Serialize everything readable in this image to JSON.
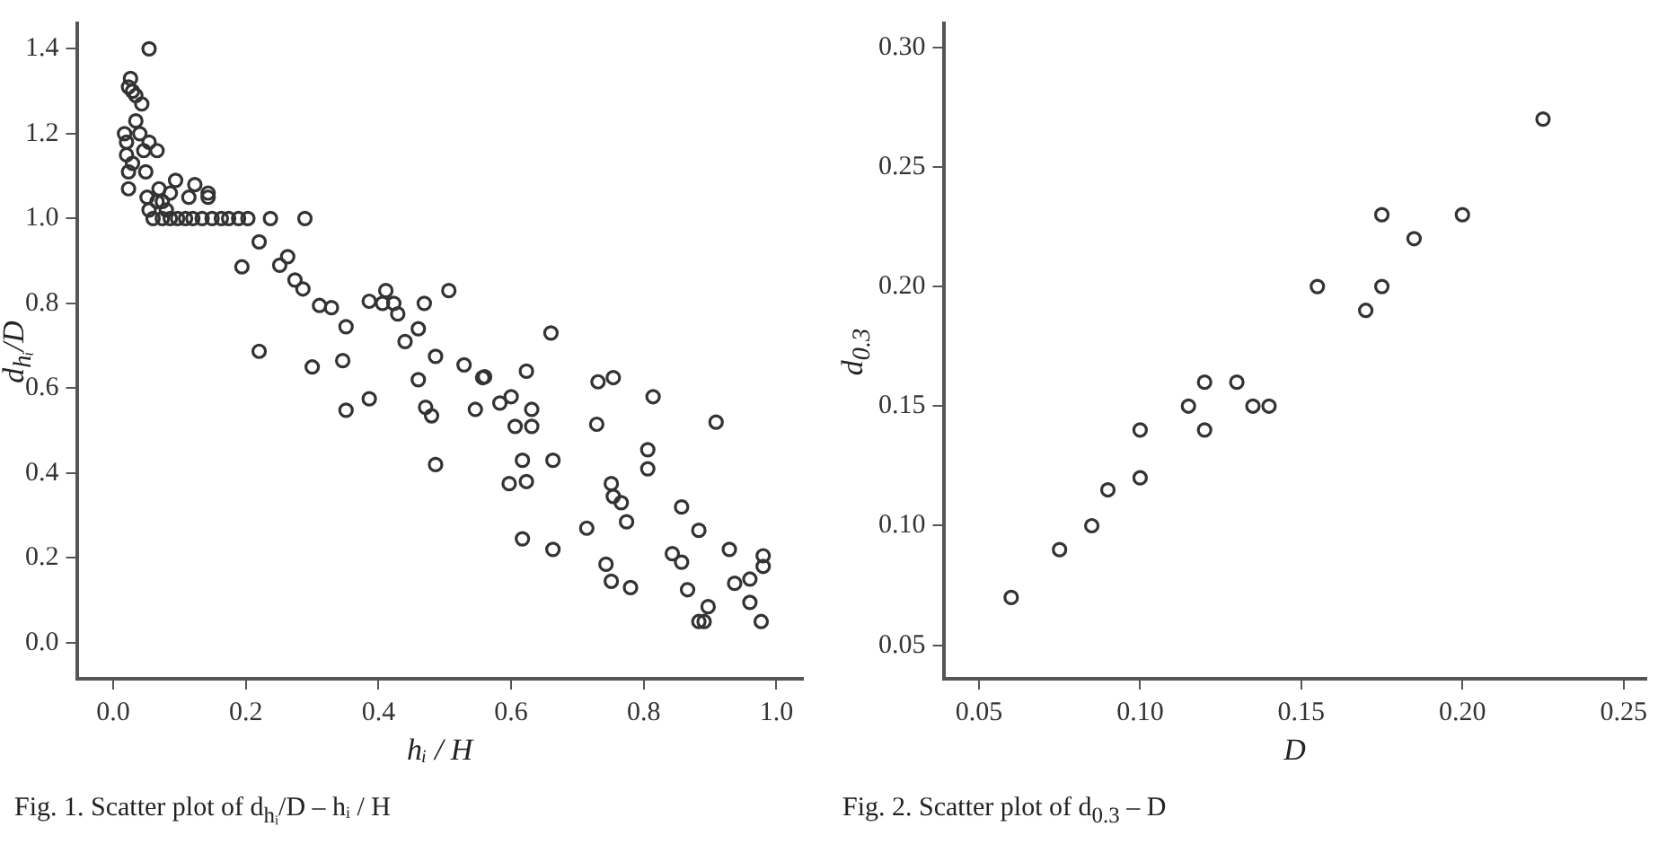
{
  "chart_data": [
    {
      "type": "scatter",
      "xlabel": "hᵢ / H",
      "ylabel": "d$_{hᵢ}$/D",
      "marker": "circle",
      "grid": false,
      "legend": false,
      "xlim": [
        -0.055,
        1.04
      ],
      "ylim": [
        -0.085,
        1.46
      ],
      "xticks": [
        {
          "value": 0,
          "label": "0.0"
        },
        0.2,
        0.4,
        0.6,
        0.8,
        {
          "value": 1,
          "label": "1.0"
        }
      ],
      "yticks": [
        {
          "value": 0,
          "label": "0.0"
        },
        0.2,
        0.4,
        0.6,
        0.8,
        {
          "value": 1,
          "label": "1.0"
        },
        1.2,
        1.4
      ],
      "annotations": [
        "Fig. 1. Scatter plot of d$_{hᵢ}$/D – hᵢ / H"
      ],
      "series": [
        {
          "color": "#333333",
          "x": [
            0.054,
            0.026,
            0.023,
            0.029,
            0.034,
            0.043,
            0.034,
            0.017,
            0.02,
            0.04,
            0.054,
            0.046,
            0.066,
            0.02,
            0.029,
            0.023,
            0.049,
            0.023,
            0.094,
            0.123,
            0.069,
            0.086,
            0.143,
            0.143,
            0.114,
            0.051,
            0.066,
            0.074,
            0.054,
            0.08,
            0.06,
            0.074,
            0.086,
            0.097,
            0.109,
            0.12,
            0.134,
            0.149,
            0.163,
            0.174,
            0.189,
            0.203,
            0.237,
            0.289,
            0.22,
            0.194,
            0.251,
            0.263,
            0.274,
            0.286,
            0.311,
            0.329,
            0.351,
            0.22,
            0.3,
            0.346,
            0.351,
            0.386,
            0.386,
            0.411,
            0.406,
            0.423,
            0.429,
            0.44,
            0.469,
            0.506,
            0.46,
            0.66,
            0.486,
            0.529,
            0.46,
            0.557,
            0.56,
            0.623,
            0.731,
            0.754,
            0.814,
            0.471,
            0.48,
            0.546,
            0.583,
            0.6,
            0.631,
            0.606,
            0.631,
            0.729,
            0.909,
            0.806,
            0.806,
            0.486,
            0.617,
            0.663,
            0.597,
            0.623,
            0.751,
            0.754,
            0.766,
            0.857,
            0.774,
            0.714,
            0.883,
            0.617,
            0.663,
            0.843,
            0.857,
            0.929,
            0.98,
            0.98,
            0.743,
            0.751,
            0.78,
            0.866,
            0.937,
            0.96,
            0.96,
            0.897,
            0.883,
            0.891,
            0.977
          ],
          "values": [
            1.4,
            1.33,
            1.31,
            1.3,
            1.29,
            1.27,
            1.23,
            1.2,
            1.18,
            1.2,
            1.18,
            1.16,
            1.16,
            1.15,
            1.13,
            1.11,
            1.11,
            1.07,
            1.09,
            1.08,
            1.07,
            1.06,
            1.06,
            1.05,
            1.05,
            1.05,
            1.04,
            1.04,
            1.02,
            1.02,
            1.0,
            1.0,
            1.0,
            1.0,
            1.0,
            1.0,
            1.0,
            1.0,
            1.0,
            1.0,
            1.0,
            1.0,
            1.0,
            1.0,
            0.945,
            0.886,
            0.89,
            0.91,
            0.855,
            0.834,
            0.795,
            0.79,
            0.745,
            0.687,
            0.65,
            0.665,
            0.548,
            0.575,
            0.805,
            0.83,
            0.8,
            0.8,
            0.775,
            0.71,
            0.8,
            0.83,
            0.74,
            0.73,
            0.675,
            0.655,
            0.62,
            0.625,
            0.627,
            0.64,
            0.615,
            0.625,
            0.58,
            0.555,
            0.535,
            0.55,
            0.565,
            0.58,
            0.55,
            0.51,
            0.51,
            0.515,
            0.52,
            0.455,
            0.41,
            0.42,
            0.43,
            0.43,
            0.375,
            0.38,
            0.375,
            0.345,
            0.33,
            0.32,
            0.285,
            0.27,
            0.265,
            0.245,
            0.22,
            0.21,
            0.19,
            0.22,
            0.205,
            0.18,
            0.185,
            0.145,
            0.13,
            0.125,
            0.14,
            0.15,
            0.095,
            0.085,
            0.05,
            0.05,
            0.05
          ]
        }
      ]
    },
    {
      "type": "scatter",
      "xlabel": "D",
      "ylabel": "d$_{0.3}$",
      "marker": "circle",
      "grid": false,
      "legend": false,
      "xlim": [
        0.039,
        0.257
      ],
      "ylim": [
        0.036,
        0.31
      ],
      "xticks": [
        0.05,
        {
          "value": 0.1,
          "label": "0.10"
        },
        0.15,
        {
          "value": 0.2,
          "label": "0.20"
        },
        0.25
      ],
      "yticks": [
        0.05,
        {
          "value": 0.1,
          "label": "0.10"
        },
        0.15,
        {
          "value": 0.2,
          "label": "0.20"
        },
        0.25,
        {
          "value": 0.3,
          "label": "0.30"
        }
      ],
      "annotations": [
        "Fig. 2. Scatter plot of d$_{0.3}$ – D"
      ],
      "series": [
        {
          "color": "#333333",
          "x": [
            0.06,
            0.075,
            0.085,
            0.09,
            0.1,
            0.1,
            0.115,
            0.12,
            0.12,
            0.13,
            0.135,
            0.14,
            0.155,
            0.17,
            0.175,
            0.175,
            0.185,
            0.2,
            0.225
          ],
          "values": [
            0.07,
            0.09,
            0.1,
            0.115,
            0.12,
            0.14,
            0.15,
            0.16,
            0.14,
            0.16,
            0.15,
            0.15,
            0.2,
            0.19,
            0.2,
            0.23,
            0.22,
            0.23,
            0.27
          ]
        }
      ]
    }
  ]
}
